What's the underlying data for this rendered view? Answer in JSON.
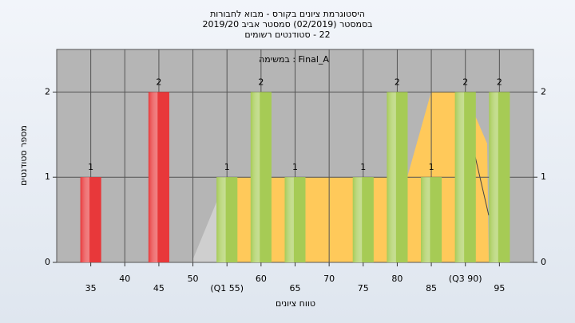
{
  "chart_data": {
    "type": "bar",
    "title": [
      "היסטוגרמת ציונים בקורס - מבוא לחבורות",
      "בסמסטר (02/2019) סמסטר אביב 2019/20",
      "22 - סטודנטים רשומים"
    ],
    "subtitle": "Final_A : במשימה",
    "x_label": "טווח ציונים",
    "y_label": "מספר סטודנטים",
    "x": [
      35,
      45,
      55,
      60,
      65,
      75,
      80,
      85,
      90,
      95
    ],
    "values": [
      1,
      2,
      1,
      2,
      1,
      1,
      2,
      1,
      2,
      2
    ],
    "colors": [
      "#e8383a",
      "#e8383a",
      "#a6cb55",
      "#a6cb55",
      "#a6cb55",
      "#a6cb55",
      "#a6cb55",
      "#a6cb55",
      "#a6cb55",
      "#a6cb55"
    ],
    "xlim": [
      30,
      100
    ],
    "xticks": [
      35,
      40,
      45,
      50,
      {
        "value": 55,
        "label": "(Q1 55)"
      },
      60,
      65,
      70,
      75,
      80,
      85,
      {
        "value": 90,
        "label": "(Q3 90)"
      },
      95
    ],
    "ylim": [
      0,
      2.5
    ],
    "yticks": [
      0,
      1,
      2
    ],
    "grid": true
  }
}
